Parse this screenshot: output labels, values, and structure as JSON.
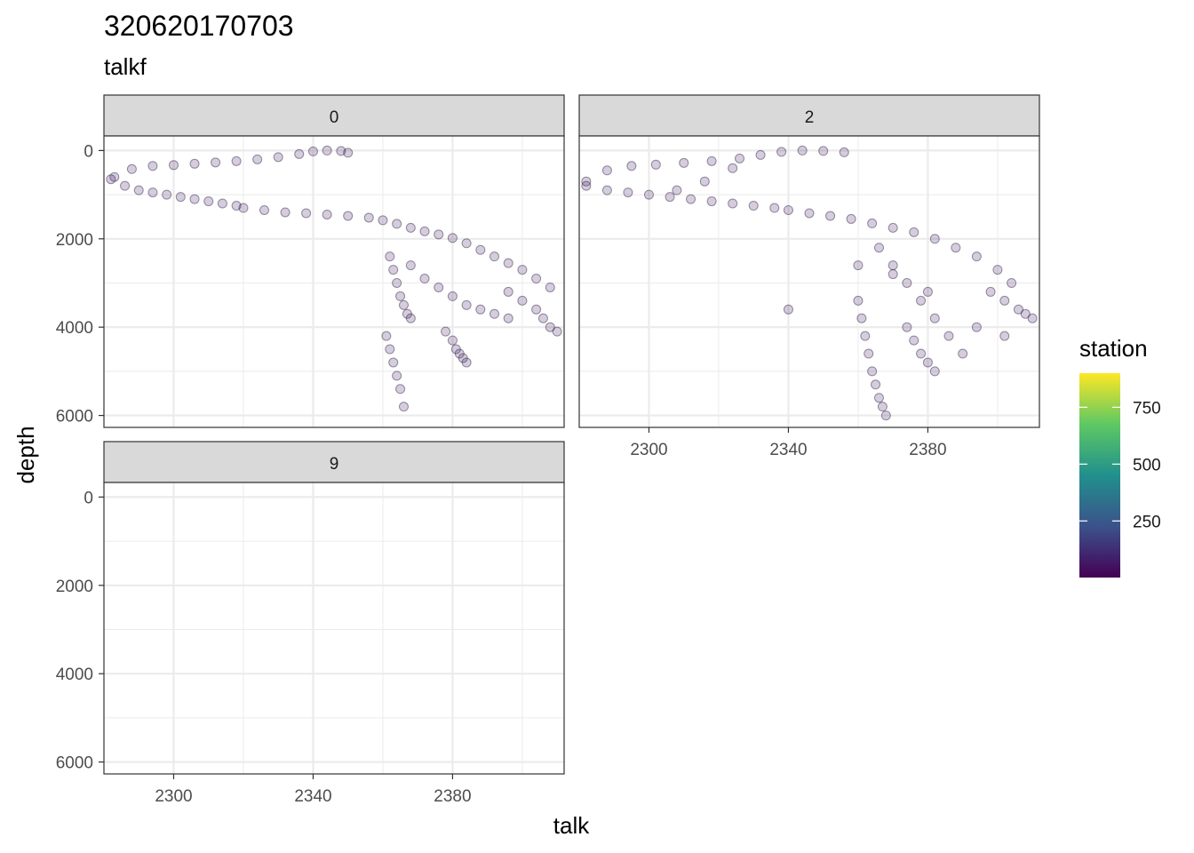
{
  "chart_data": {
    "type": "scatter",
    "title": "320620170703",
    "subtitle": "talkf",
    "xlabel": "talk",
    "ylabel": "depth",
    "xlim": [
      2280,
      2412
    ],
    "ylim": [
      6270,
      -330
    ],
    "x_ticks": [
      2300,
      2340,
      2380
    ],
    "y_ticks": [
      0,
      2000,
      4000,
      6000
    ],
    "grid": true,
    "legend": {
      "title": "station",
      "position": "right",
      "range": [
        1,
        900
      ],
      "ticks": [
        250,
        500,
        750
      ],
      "colors": [
        "#440154",
        "#3b528b",
        "#21908c",
        "#5dc863",
        "#fde725"
      ]
    },
    "panels": [
      {
        "label": "0",
        "series": [
          {
            "x": [
              2283,
              2288,
              2294,
              2300,
              2306,
              2312,
              2318,
              2324,
              2330,
              2336,
              2340,
              2344,
              2348,
              2350
            ],
            "y": [
              600,
              420,
              350,
              330,
              300,
              270,
              240,
              200,
              150,
              80,
              20,
              0,
              10,
              50
            ]
          },
          {
            "x": [
              2282,
              2286,
              2290,
              2294,
              2298,
              2302,
              2306,
              2310,
              2314,
              2318
            ],
            "y": [
              650,
              800,
              900,
              950,
              1000,
              1050,
              1100,
              1150,
              1200,
              1250
            ]
          },
          {
            "x": [
              2320,
              2326,
              2332,
              2338,
              2344,
              2350,
              2356,
              2360,
              2364,
              2368,
              2372,
              2376
            ],
            "y": [
              1300,
              1350,
              1400,
              1420,
              1450,
              1480,
              1520,
              1580,
              1660,
              1750,
              1830,
              1900
            ]
          },
          {
            "x": [
              2380,
              2384,
              2388,
              2392,
              2396,
              2400,
              2404,
              2408
            ],
            "y": [
              1980,
              2100,
              2250,
              2400,
              2550,
              2700,
              2900,
              3100
            ]
          },
          {
            "x": [
              2396,
              2400,
              2404,
              2406,
              2408,
              2410
            ],
            "y": [
              3200,
              3400,
              3600,
              3800,
              4000,
              4100
            ]
          },
          {
            "x": [
              2362,
              2363,
              2364,
              2365,
              2366,
              2367,
              2368
            ],
            "y": [
              2400,
              2700,
              3000,
              3300,
              3500,
              3700,
              3800
            ]
          },
          {
            "x": [
              2361,
              2362,
              2363,
              2364,
              2365,
              2366
            ],
            "y": [
              4200,
              4500,
              4800,
              5100,
              5400,
              5800
            ]
          },
          {
            "x": [
              2378,
              2380,
              2381,
              2382,
              2383,
              2384
            ],
            "y": [
              4100,
              4300,
              4500,
              4600,
              4700,
              4800
            ]
          },
          {
            "x": [
              2368,
              2372,
              2376,
              2380,
              2384,
              2388,
              2392,
              2396
            ],
            "y": [
              2600,
              2900,
              3100,
              3300,
              3500,
              3600,
              3700,
              3800
            ]
          }
        ]
      },
      {
        "label": "2",
        "series": [
          {
            "x": [
              2282,
              2288,
              2295,
              2302,
              2310,
              2318,
              2326,
              2332,
              2338,
              2344,
              2350,
              2356
            ],
            "y": [
              700,
              450,
              350,
              320,
              280,
              240,
              180,
              100,
              30,
              0,
              10,
              40
            ]
          },
          {
            "x": [
              2282,
              2288,
              2294,
              2300,
              2306,
              2312,
              2318,
              2324,
              2330,
              2336
            ],
            "y": [
              800,
              900,
              950,
              1000,
              1050,
              1100,
              1150,
              1200,
              1250,
              1300
            ]
          },
          {
            "x": [
              2340,
              2346,
              2352,
              2358,
              2364,
              2370,
              2376,
              2382,
              2388,
              2394,
              2400,
              2404
            ],
            "y": [
              1350,
              1420,
              1480,
              1550,
              1650,
              1750,
              1850,
              2000,
              2200,
              2400,
              2700,
              3000
            ]
          },
          {
            "x": [
              2398,
              2402,
              2406,
              2408,
              2410
            ],
            "y": [
              3200,
              3400,
              3600,
              3700,
              3800
            ]
          },
          {
            "x": [
              2360,
              2361,
              2362,
              2363,
              2364,
              2365,
              2366,
              2367,
              2368
            ],
            "y": [
              3400,
              3800,
              4200,
              4600,
              5000,
              5300,
              5600,
              5800,
              6000
            ]
          },
          {
            "x": [
              2366,
              2370,
              2374,
              2378,
              2382,
              2386,
              2390
            ],
            "y": [
              2200,
              2600,
              3000,
              3400,
              3800,
              4200,
              4600
            ]
          },
          {
            "x": [
              2374,
              2376,
              2378,
              2380,
              2382
            ],
            "y": [
              4000,
              4300,
              4600,
              4800,
              5000
            ]
          },
          {
            "x": [
              2308,
              2316,
              2324,
              2340,
              2360,
              2370,
              2380,
              2394,
              2402
            ],
            "y": [
              900,
              700,
              400,
              3600,
              2600,
              2800,
              3200,
              4000,
              4200
            ]
          }
        ]
      },
      {
        "label": "9",
        "series": []
      }
    ]
  }
}
